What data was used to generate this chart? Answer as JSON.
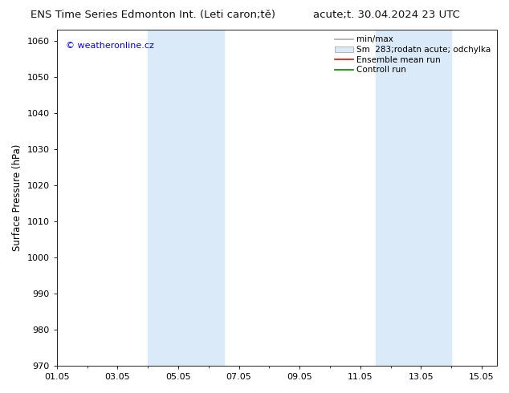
{
  "title_left": "ENS Time Series Edmonton Int. (Leti caron;tě)",
  "title_right": "acute;t. 30.04.2024 23 UTC",
  "ylabel": "Surface Pressure (hPa)",
  "ylim": [
    970,
    1063
  ],
  "yticks": [
    970,
    980,
    990,
    1000,
    1010,
    1020,
    1030,
    1040,
    1050,
    1060
  ],
  "xtick_positions": [
    0,
    2,
    4,
    6,
    8,
    10,
    12,
    14
  ],
  "xtick_labels": [
    "01.05",
    "03.05",
    "05.05",
    "07.05",
    "09.05",
    "11.05",
    "13.05",
    "15.05"
  ],
  "xlim": [
    0,
    14.5
  ],
  "shaded_bands": [
    {
      "xmin": 3.0,
      "xmax": 5.5
    },
    {
      "xmin": 10.5,
      "xmax": 13.0
    }
  ],
  "watermark_text": "© weatheronline.cz",
  "legend_entries": [
    {
      "label": "min/max"
    },
    {
      "label": "Sm  283;rodatn acute; odchylka"
    },
    {
      "label": "Ensemble mean run"
    },
    {
      "label": "Controll run"
    }
  ],
  "bg_color": "#ffffff",
  "plot_bg_color": "#ffffff",
  "shaded_color": "#daeaf8",
  "title_fontsize": 9.5,
  "axis_label_fontsize": 8.5,
  "tick_fontsize": 8,
  "legend_fontsize": 7.5,
  "watermark_fontsize": 8
}
